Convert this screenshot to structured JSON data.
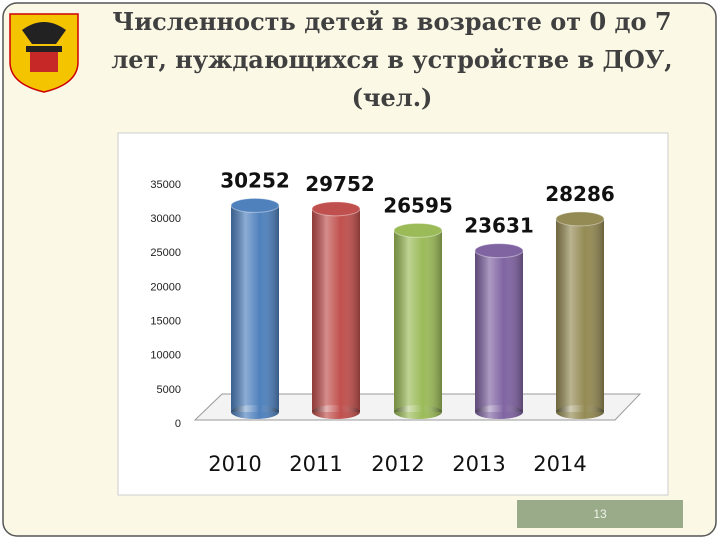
{
  "chart_data": {
    "type": "bar",
    "title_lines": [
      "Численность детей в возрасте от 0 до 7",
      "лет, нуждающихся в устройстве в ДОУ,",
      "(чел.)"
    ],
    "categories": [
      "2010",
      "2011",
      "2012",
      "2013",
      "2014"
    ],
    "values": [
      30252,
      29752,
      26595,
      23631,
      28286
    ],
    "colors": [
      "#4f81bd",
      "#c0504d",
      "#9bbb59",
      "#8064a2",
      "#948a54"
    ],
    "ylim": [
      0,
      35000
    ],
    "yticks": [
      0,
      5000,
      10000,
      15000,
      20000,
      25000,
      30000,
      35000
    ]
  },
  "slide_number": "13"
}
